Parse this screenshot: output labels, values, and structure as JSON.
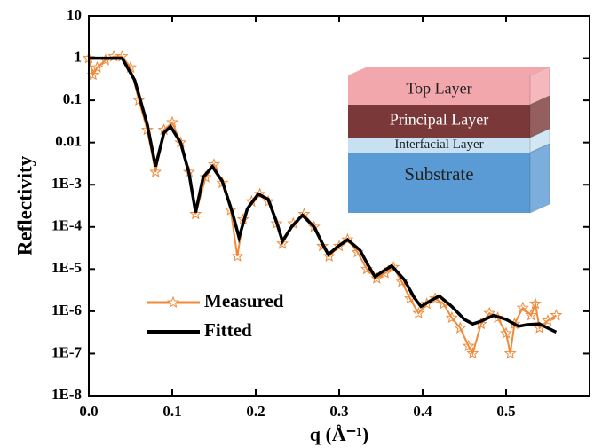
{
  "chart_data": {
    "type": "line",
    "log_y": true,
    "y_label": "Reflectivity",
    "x_label": "q (Å⁻¹)",
    "xlim": [
      0,
      0.6
    ],
    "xticks": [
      {
        "value": 0,
        "label": "0.0"
      },
      0.1,
      0.2,
      0.3,
      0.4,
      0.5
    ],
    "ylim": [
      1e-08,
      10
    ],
    "yticks": [
      10,
      1,
      0.1,
      0.01,
      {
        "value": 0.001,
        "label": "1E-3"
      },
      {
        "value": 0.0001,
        "label": "1E-4"
      },
      {
        "value": 1e-05,
        "label": "1E-5"
      },
      {
        "value": 1e-06,
        "label": "1E-6"
      },
      {
        "value": 1e-07,
        "label": "1E-7"
      },
      {
        "value": 1e-08,
        "label": "1E-8"
      }
    ],
    "legend": "lower-left",
    "series": [
      {
        "name": "Measured",
        "color": "#f08a3a",
        "marker": "star",
        "x": [
          0,
          0.005,
          0.01,
          0.02,
          0.03,
          0.04,
          0.05,
          0.06,
          0.07,
          0.08,
          0.09,
          0.1,
          0.11,
          0.12,
          0.128,
          0.14,
          0.15,
          0.16,
          0.17,
          0.178,
          0.185,
          0.195,
          0.205,
          0.215,
          0.225,
          0.232,
          0.245,
          0.258,
          0.27,
          0.28,
          0.288,
          0.3,
          0.31,
          0.322,
          0.333,
          0.345,
          0.355,
          0.365,
          0.375,
          0.385,
          0.395,
          0.405,
          0.415,
          0.425,
          0.435,
          0.445,
          0.455,
          0.46,
          0.47,
          0.48,
          0.49,
          0.5,
          0.505,
          0.51,
          0.52,
          0.53,
          0.535,
          0.54,
          0.55,
          0.56
        ],
        "values": [
          1,
          0.4,
          0.6,
          0.9,
          1.1,
          1.1,
          0.6,
          0.1,
          0.02,
          0.002,
          0.02,
          0.03,
          0.01,
          0.002,
          0.0002,
          0.0015,
          0.003,
          0.0011,
          0.00025,
          2e-05,
          0.00015,
          0.0004,
          0.0006,
          0.0004,
          0.00012,
          4e-05,
          0.00012,
          0.0002,
          0.0001,
          3.5e-05,
          2e-05,
          3.5e-05,
          5e-05,
          2.5e-05,
          1e-05,
          6e-06,
          8e-06,
          1.1e-05,
          5e-06,
          2e-06,
          9e-07,
          1.5e-06,
          2e-06,
          1.5e-06,
          7e-07,
          4e-07,
          1.5e-07,
          1e-07,
          5e-07,
          9e-07,
          7e-07,
          3e-07,
          1e-07,
          5e-07,
          1.2e-06,
          8e-07,
          1.5e-06,
          4e-07,
          6e-07,
          8e-07
        ]
      },
      {
        "name": "Fitted",
        "color": "#000000",
        "marker": "none",
        "x": [
          0,
          0.04,
          0.055,
          0.07,
          0.08,
          0.09,
          0.098,
          0.11,
          0.12,
          0.128,
          0.137,
          0.148,
          0.16,
          0.172,
          0.18,
          0.19,
          0.203,
          0.215,
          0.225,
          0.232,
          0.243,
          0.256,
          0.27,
          0.28,
          0.287,
          0.298,
          0.31,
          0.325,
          0.335,
          0.343,
          0.353,
          0.363,
          0.378,
          0.39,
          0.398,
          0.41,
          0.42,
          0.435,
          0.45,
          0.46,
          0.47,
          0.485,
          0.5,
          0.515,
          0.525,
          0.54,
          0.55,
          0.56
        ],
        "values": [
          1,
          1,
          0.3,
          0.027,
          0.0027,
          0.017,
          0.024,
          0.01,
          0.0019,
          0.00022,
          0.0015,
          0.0027,
          0.0012,
          0.00022,
          5.6e-05,
          0.00027,
          0.0006,
          0.00045,
          0.00013,
          4.6e-05,
          0.0001,
          0.00019,
          0.0001,
          4e-05,
          2.2e-05,
          3.4e-05,
          5e-05,
          2.8e-05,
          1.2e-05,
          6.6e-06,
          9e-06,
          1.2e-05,
          5.6e-06,
          2.1e-06,
          1.3e-06,
          1.8e-06,
          2.3e-06,
          1.3e-06,
          6.4e-07,
          5e-07,
          5.8e-07,
          8e-07,
          6.4e-07,
          4.4e-07,
          4.8e-07,
          5e-07,
          4e-07,
          3.2e-07
        ]
      }
    ],
    "inset_layers": [
      {
        "label": "Top Layer",
        "color": "#f2a7ad"
      },
      {
        "label": "Principal Layer",
        "color": "#7b3838"
      },
      {
        "label": "Interfacial Layer",
        "color": "#c7e0f2"
      },
      {
        "label": "Substrate",
        "color": "#5b9bd5"
      }
    ]
  }
}
